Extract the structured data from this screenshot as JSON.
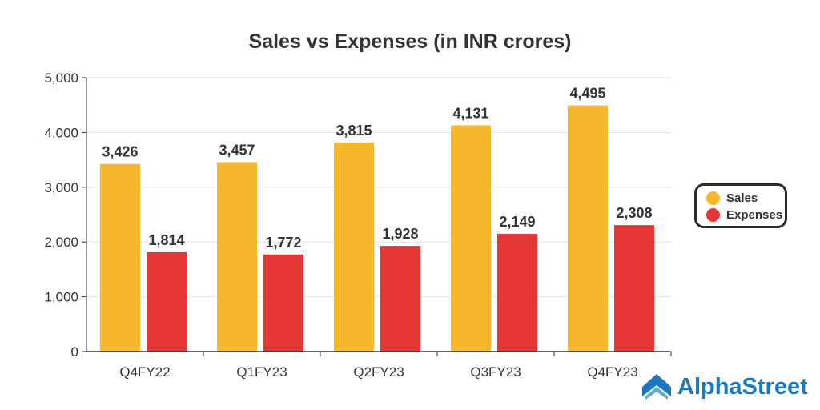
{
  "chart_data": {
    "type": "bar",
    "title": "Sales vs Expenses (in INR crores)",
    "categories": [
      "Q4FY22",
      "Q1FY23",
      "Q2FY23",
      "Q3FY23",
      "Q4FY23"
    ],
    "series": [
      {
        "name": "Sales",
        "color": "#f5b82a",
        "values": [
          3426,
          3457,
          3815,
          4131,
          4495
        ],
        "labels": [
          "3,426",
          "3,457",
          "3,815",
          "4,131",
          "4,495"
        ]
      },
      {
        "name": "Expenses",
        "color": "#e53535",
        "values": [
          1814,
          1772,
          1928,
          2149,
          2308
        ],
        "labels": [
          "1,814",
          "1,772",
          "1,928",
          "2,149",
          "2,308"
        ]
      }
    ],
    "ylim": [
      0,
      5000
    ],
    "yticks": [
      0,
      1000,
      2000,
      3000,
      4000,
      5000
    ],
    "ytick_labels": [
      "0",
      "1,000",
      "2,000",
      "3,000",
      "4,000",
      "5,000"
    ],
    "xlabel": "",
    "ylabel": "",
    "grid": true,
    "legend": "right"
  },
  "brand": "AlphaStreet"
}
